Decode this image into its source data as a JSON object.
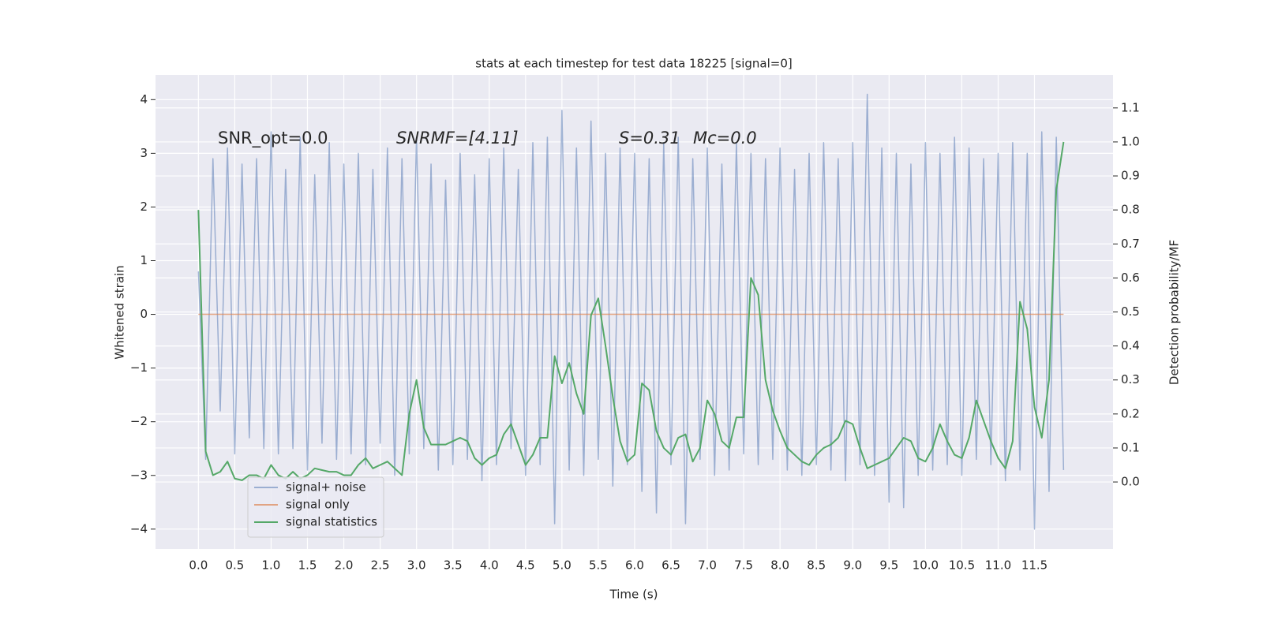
{
  "chart_data": {
    "type": "line",
    "title": "stats at each timestep for test data 18225 [signal=0]",
    "xlabel": "Time (s)",
    "ylabel": "Whitened strain",
    "y2label": "Detection probability/MF",
    "annotations": [
      "SNR_opt=0.0",
      "SNRMF=[4.11]",
      "S=0.31",
      "Mc=0.0"
    ],
    "x": [
      0.0,
      0.1,
      0.2,
      0.3,
      0.4,
      0.5,
      0.6,
      0.7,
      0.8,
      0.9,
      1.0,
      1.1,
      1.2,
      1.3,
      1.4,
      1.5,
      1.6,
      1.7,
      1.8,
      1.9,
      2.0,
      2.1,
      2.2,
      2.3,
      2.4,
      2.5,
      2.6,
      2.7,
      2.8,
      2.9,
      3.0,
      3.1,
      3.2,
      3.3,
      3.4,
      3.5,
      3.6,
      3.7,
      3.8,
      3.9,
      4.0,
      4.1,
      4.2,
      4.3,
      4.4,
      4.5,
      4.6,
      4.7,
      4.8,
      4.9,
      5.0,
      5.1,
      5.2,
      5.3,
      5.4,
      5.5,
      5.6,
      5.7,
      5.8,
      5.9,
      6.0,
      6.1,
      6.2,
      6.3,
      6.4,
      6.5,
      6.6,
      6.7,
      6.8,
      6.9,
      7.0,
      7.1,
      7.2,
      7.3,
      7.4,
      7.5,
      7.6,
      7.7,
      7.8,
      7.9,
      8.0,
      8.1,
      8.2,
      8.3,
      8.4,
      8.5,
      8.6,
      8.7,
      8.8,
      8.9,
      9.0,
      9.1,
      9.2,
      9.3,
      9.4,
      9.5,
      9.6,
      9.7,
      9.8,
      9.9,
      10.0,
      10.1,
      10.2,
      10.3,
      10.4,
      10.5,
      10.6,
      10.7,
      10.8,
      10.9,
      11.0,
      11.1,
      11.2,
      11.3,
      11.4,
      11.5,
      11.6,
      11.7,
      11.8,
      11.9
    ],
    "series": [
      {
        "name": "signal+ noise",
        "color": "#4c72b0",
        "opacity": 0.5,
        "axis": "y",
        "values": [
          0.8,
          -2.7,
          2.9,
          -1.8,
          3.1,
          -2.6,
          2.8,
          -2.3,
          2.9,
          -2.5,
          3.4,
          -2.6,
          2.7,
          -2.5,
          3.3,
          -2.9,
          2.6,
          -2.4,
          3.2,
          -2.7,
          2.8,
          -2.6,
          3.0,
          -2.8,
          2.7,
          -2.4,
          3.1,
          -3.0,
          2.9,
          -2.6,
          3.3,
          -2.5,
          2.8,
          -2.9,
          2.5,
          -2.8,
          3.0,
          -2.7,
          2.6,
          -3.1,
          2.9,
          -2.8,
          3.1,
          -2.5,
          2.7,
          -3.0,
          3.2,
          -2.8,
          3.3,
          -3.9,
          3.8,
          -2.9,
          3.1,
          -3.0,
          3.6,
          -2.7,
          3.0,
          -3.2,
          3.1,
          -2.8,
          3.0,
          -3.3,
          2.9,
          -3.7,
          3.2,
          -2.8,
          3.3,
          -3.9,
          2.9,
          -2.7,
          3.1,
          -3.0,
          2.8,
          -2.9,
          3.2,
          -2.6,
          3.0,
          -2.8,
          2.9,
          -2.7,
          3.1,
          -2.9,
          2.7,
          -3.0,
          3.0,
          -2.8,
          3.2,
          -2.9,
          2.9,
          -3.1,
          3.2,
          -2.8,
          4.1,
          -3.0,
          3.1,
          -3.5,
          3.0,
          -3.6,
          2.8,
          -3.0,
          3.2,
          -2.9,
          3.0,
          -2.8,
          3.3,
          -3.0,
          3.1,
          -2.7,
          2.9,
          -2.8,
          3.0,
          -3.1,
          3.2,
          -2.9,
          3.0,
          -4.0,
          3.4,
          -3.3,
          3.3,
          -2.9
        ]
      },
      {
        "name": "signal only",
        "color": "#dd8452",
        "opacity": 0.7,
        "axis": "y",
        "values": [
          0,
          0,
          0,
          0,
          0,
          0,
          0,
          0,
          0,
          0,
          0,
          0,
          0,
          0,
          0,
          0,
          0,
          0,
          0,
          0,
          0,
          0,
          0,
          0,
          0,
          0,
          0,
          0,
          0,
          0,
          0,
          0,
          0,
          0,
          0,
          0,
          0,
          0,
          0,
          0,
          0,
          0,
          0,
          0,
          0,
          0,
          0,
          0,
          0,
          0,
          0,
          0,
          0,
          0,
          0,
          0,
          0,
          0,
          0,
          0,
          0,
          0,
          0,
          0,
          0,
          0,
          0,
          0,
          0,
          0,
          0,
          0,
          0,
          0,
          0,
          0,
          0,
          0,
          0,
          0,
          0,
          0,
          0,
          0,
          0,
          0,
          0,
          0,
          0,
          0,
          0,
          0,
          0,
          0,
          0,
          0,
          0,
          0,
          0,
          0,
          0,
          0,
          0,
          0,
          0,
          0,
          0,
          0,
          0,
          0,
          0,
          0,
          0,
          0,
          0,
          0,
          0,
          0,
          0,
          0
        ]
      },
      {
        "name": "signal statistics",
        "color": "#55a868",
        "opacity": 1,
        "axis": "y2",
        "values": [
          0.8,
          0.09,
          0.02,
          0.03,
          0.06,
          0.01,
          0.005,
          0.02,
          0.02,
          0.01,
          0.05,
          0.02,
          0.01,
          0.03,
          0.01,
          0.02,
          0.04,
          0.035,
          0.03,
          0.03,
          0.02,
          0.02,
          0.05,
          0.07,
          0.04,
          0.05,
          0.06,
          0.04,
          0.02,
          0.2,
          0.3,
          0.16,
          0.11,
          0.11,
          0.11,
          0.12,
          0.13,
          0.12,
          0.07,
          0.05,
          0.07,
          0.08,
          0.14,
          0.17,
          0.11,
          0.05,
          0.08,
          0.13,
          0.13,
          0.37,
          0.29,
          0.35,
          0.26,
          0.2,
          0.49,
          0.54,
          0.4,
          0.25,
          0.12,
          0.06,
          0.08,
          0.29,
          0.27,
          0.15,
          0.1,
          0.08,
          0.13,
          0.14,
          0.06,
          0.1,
          0.24,
          0.2,
          0.12,
          0.1,
          0.19,
          0.19,
          0.6,
          0.55,
          0.3,
          0.21,
          0.15,
          0.1,
          0.08,
          0.06,
          0.05,
          0.08,
          0.1,
          0.11,
          0.13,
          0.18,
          0.17,
          0.1,
          0.04,
          0.05,
          0.06,
          0.07,
          0.1,
          0.13,
          0.12,
          0.07,
          0.06,
          0.1,
          0.17,
          0.12,
          0.08,
          0.07,
          0.13,
          0.24,
          0.18,
          0.12,
          0.07,
          0.04,
          0.12,
          0.53,
          0.45,
          0.22,
          0.13,
          0.3,
          0.86,
          1.0
        ]
      }
    ],
    "xlim": [
      -0.59,
      12.58
    ],
    "ylim": [
      -4.37,
      4.46
    ],
    "y2lim": [
      -0.197,
      1.197
    ],
    "xticks": [
      {
        "value": 0,
        "label": "0.0"
      },
      {
        "value": 0.5,
        "label": "0.5"
      },
      {
        "value": 1,
        "label": "1.0"
      },
      {
        "value": 1.5,
        "label": "1.5"
      },
      {
        "value": 2,
        "label": "2.0"
      },
      {
        "value": 2.5,
        "label": "2.5"
      },
      {
        "value": 3,
        "label": "3.0"
      },
      {
        "value": 3.5,
        "label": "3.5"
      },
      {
        "value": 4,
        "label": "4.0"
      },
      {
        "value": 4.5,
        "label": "4.5"
      },
      {
        "value": 5,
        "label": "5.0"
      },
      {
        "value": 5.5,
        "label": "5.5"
      },
      {
        "value": 6,
        "label": "6.0"
      },
      {
        "value": 6.5,
        "label": "6.5"
      },
      {
        "value": 7,
        "label": "7.0"
      },
      {
        "value": 7.5,
        "label": "7.5"
      },
      {
        "value": 8,
        "label": "8.0"
      },
      {
        "value": 8.5,
        "label": "8.5"
      },
      {
        "value": 9,
        "label": "9.0"
      },
      {
        "value": 9.5,
        "label": "9.5"
      },
      {
        "value": 10,
        "label": "10.0"
      },
      {
        "value": 10.5,
        "label": "10.5"
      },
      {
        "value": 11,
        "label": "11.0"
      },
      {
        "value": 11.5,
        "label": "11.5"
      }
    ],
    "yticks": [
      {
        "value": -4,
        "label": "−4"
      },
      {
        "value": -3,
        "label": "−3"
      },
      {
        "value": -2,
        "label": "−2"
      },
      {
        "value": -1,
        "label": "−1"
      },
      0,
      1,
      2,
      3,
      4
    ],
    "y2ticks": [
      {
        "value": 0,
        "label": "0.0"
      },
      {
        "value": 0.1,
        "label": "0.1"
      },
      {
        "value": 0.2,
        "label": "0.2"
      },
      {
        "value": 0.3,
        "label": "0.3"
      },
      {
        "value": 0.4,
        "label": "0.4"
      },
      {
        "value": 0.5,
        "label": "0.5"
      },
      {
        "value": 0.6,
        "label": "0.6"
      },
      {
        "value": 0.7,
        "label": "0.7"
      },
      {
        "value": 0.8,
        "label": "0.8"
      },
      {
        "value": 0.9,
        "label": "0.9"
      },
      {
        "value": 1.0,
        "label": "1.0"
      },
      {
        "value": 1.1,
        "label": "1.1"
      }
    ],
    "grid": true,
    "legend": "lower left"
  }
}
